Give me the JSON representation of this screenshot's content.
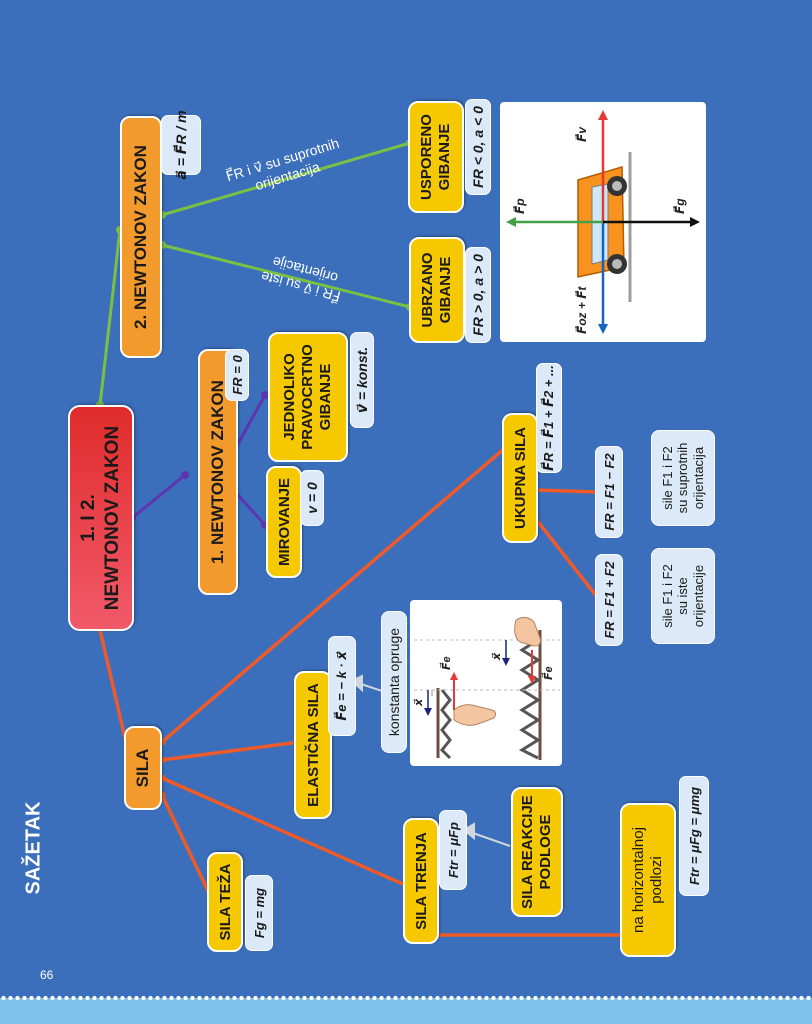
{
  "page": {
    "title": "SAŽETAK",
    "page_number": "66"
  },
  "nodes": {
    "main": "1.   I   2.\nNEWTONOV ZAKON",
    "newton2": "2. NEWTONOV ZAKON",
    "newton2_formula": "a⃗ = F⃗R / m",
    "newton1": "1. NEWTONOV ZAKON",
    "newton1_formula": "FR = 0",
    "jednoliko": "JEDNOLIKO\nPRAVOCRTNO\nGIBANJE",
    "jednoliko_formula": "v⃗ = konst.",
    "mirovanje": "MIROVANJE",
    "mirovanje_formula": "v = 0",
    "usporeno": "USPORENO\nGIBANJE",
    "usporeno_formula": "FR < 0, a < 0",
    "ubrzano": "UBRZANO\nGIBANJE",
    "ubrzano_formula": "FR > 0, a > 0",
    "edge_suprotnih": "F⃗R i v⃗ su suprotnih\norijentacija",
    "edge_iste": "F⃗R i v⃗ su iste\norijentacije",
    "sila": "SILA",
    "sila_teza": "SILA TEŽA",
    "sila_teza_formula": "Fg = mg",
    "elasticna": "ELASTIČNA SILA",
    "elasticna_formula": "F⃗e = − k · x⃗",
    "konstanta": "konstanta opruge",
    "sila_trenja": "SILA TRENJA",
    "trenje_formula": "Ftr = μFp",
    "reakcija": "SILA REAKCIJE\nPODLOGE",
    "horizontalna": "na horizontalnoj\npodlozi",
    "horizontalna_formula": "Ftr = μFg = μmg",
    "ukupna": "UKUPNA SILA",
    "ukupna_formula": "F⃗R = F⃗1 + F⃗2 + ...",
    "razlika_formula": "FR = F1 − F2",
    "razlika_info": "sile F1 i F2\nsu suprotnih\norijentacija",
    "zbroj_formula": "FR = F1 + F2",
    "zbroj_info": "sile F1 i F2\nsu iste\norijentacije"
  },
  "car_figure": {
    "labels": {
      "fv": "F⃗v",
      "fp": "F⃗p",
      "fg": "F⃗g",
      "foz": "F⃗oz + F⃗t"
    },
    "colors": {
      "body": "#f7931e",
      "up": "#e53935",
      "down": "#1565c0",
      "left": "#43a047",
      "right": "#111111"
    }
  },
  "spring_figure": {
    "labels": {
      "x": "x⃗",
      "fe": "F⃗e"
    }
  },
  "colors": {
    "background": "#3b6fbb",
    "yellow": "#f5c800",
    "orange": "#f39a2d",
    "red": "#e02b2b",
    "line_orange": "#ef5a28",
    "line_green": "#7ac143",
    "line_purple": "#5e35b1"
  }
}
